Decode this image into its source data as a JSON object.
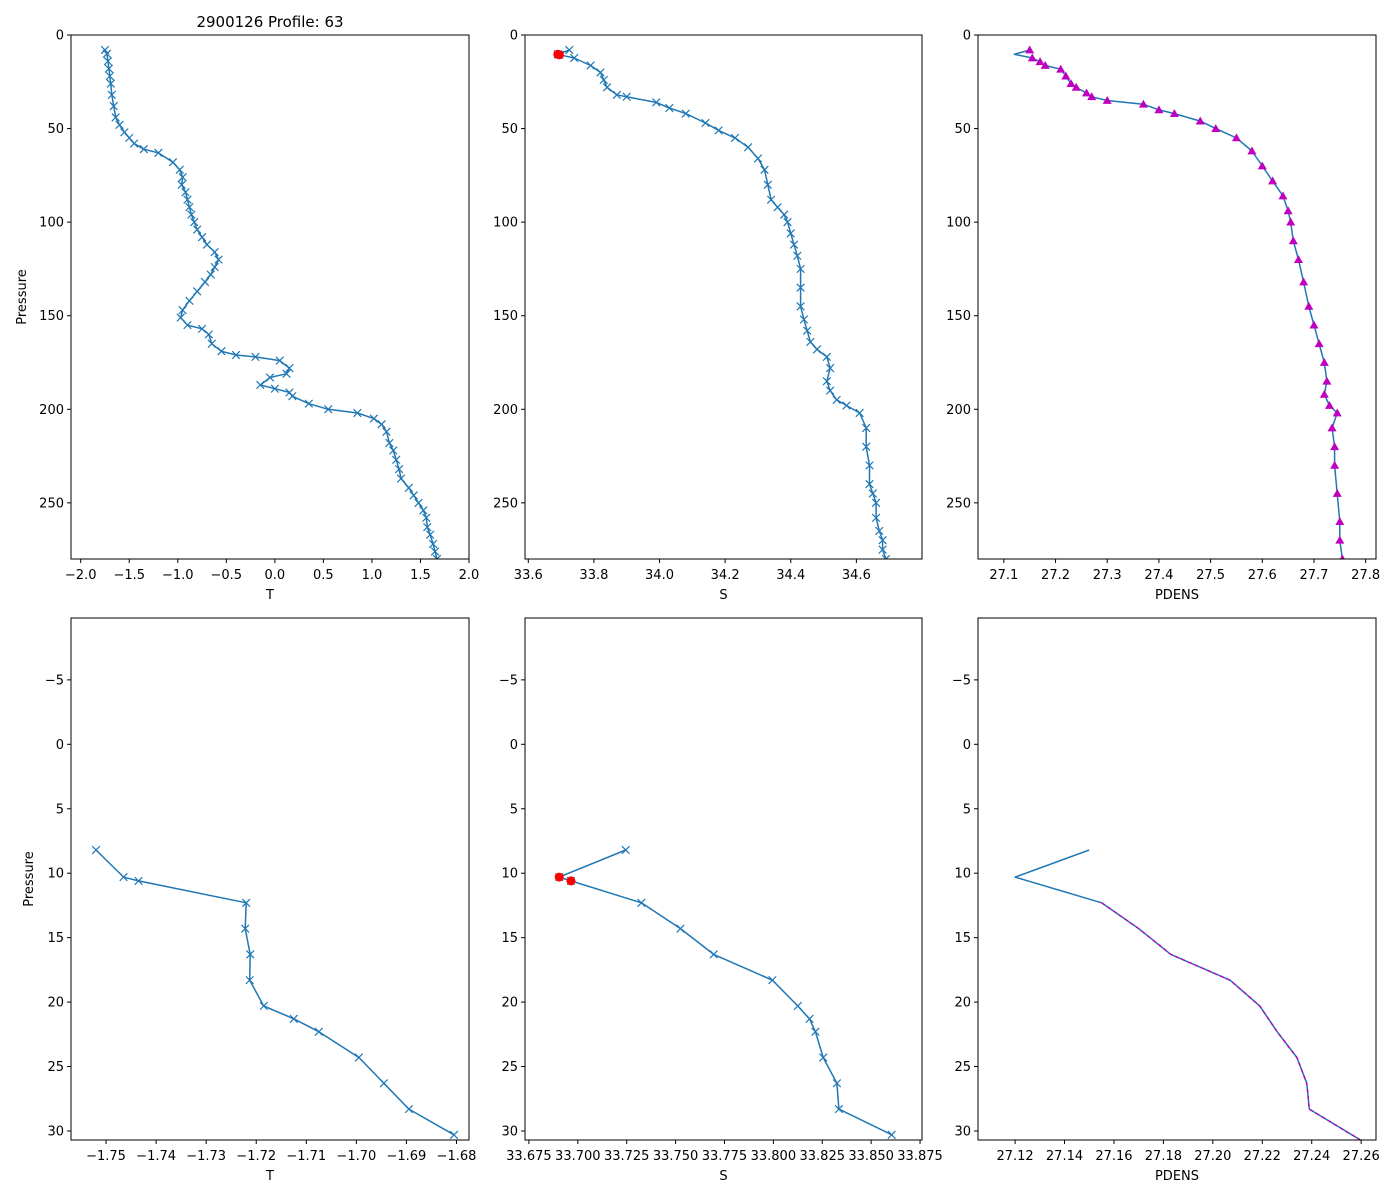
{
  "figure": {
    "title": "2900126 Profile: 63"
  },
  "colors": {
    "line": "#1f77b4",
    "pdens_marker": "#bf00bf",
    "flag": "#ff0000"
  },
  "chart_data": [
    {
      "type": "line",
      "panel": "top-T",
      "xlabel": "T",
      "ylabel": "Pressure",
      "xlim": [
        -2.1,
        2.0
      ],
      "ylim": [
        280,
        0
      ],
      "y_inverted": true,
      "xticks": [
        -2.0,
        -1.5,
        -1.0,
        -0.5,
        0.0,
        0.5,
        1.0,
        1.5,
        2.0
      ],
      "xticklabels": [
        "−2.0",
        "−1.5",
        "−1.0",
        "−0.5",
        "0.0",
        "0.5",
        "1.0",
        "1.5",
        "2.0"
      ],
      "yticks": [
        0,
        50,
        100,
        150,
        200,
        250
      ],
      "yticklabels": [
        "0",
        "50",
        "100",
        "150",
        "200",
        "250"
      ],
      "marker": "x",
      "x": [
        -1.75,
        -1.73,
        -1.72,
        -1.71,
        -1.7,
        -1.69,
        -1.68,
        -1.66,
        -1.64,
        -1.6,
        -1.55,
        -1.5,
        -1.45,
        -1.35,
        -1.2,
        -1.05,
        -0.98,
        -0.95,
        -0.96,
        -0.92,
        -0.9,
        -0.88,
        -0.86,
        -0.83,
        -0.8,
        -0.75,
        -0.7,
        -0.62,
        -0.58,
        -0.62,
        -0.66,
        -0.72,
        -0.8,
        -0.88,
        -0.95,
        -0.97,
        -0.9,
        -0.75,
        -0.68,
        -0.65,
        -0.55,
        -0.4,
        -0.2,
        0.05,
        0.15,
        0.12,
        -0.05,
        -0.15,
        0.0,
        0.15,
        0.18,
        0.35,
        0.55,
        0.85,
        1.02,
        1.1,
        1.15,
        1.18,
        1.22,
        1.25,
        1.28,
        1.3,
        1.38,
        1.43,
        1.48,
        1.53,
        1.56,
        1.57,
        1.6,
        1.63,
        1.65,
        1.67
      ],
      "y": [
        8,
        10,
        14,
        18,
        22,
        26,
        32,
        38,
        44,
        48,
        52,
        55,
        58,
        61,
        63,
        68,
        72,
        76,
        80,
        84,
        88,
        92,
        96,
        100,
        104,
        108,
        112,
        116,
        120,
        124,
        128,
        132,
        137,
        142,
        147,
        151,
        155,
        157,
        160,
        165,
        169,
        171,
        172,
        174,
        178,
        181,
        183,
        187,
        189,
        191,
        193,
        197,
        200,
        202,
        205,
        208,
        212,
        218,
        222,
        227,
        232,
        237,
        242,
        246,
        250,
        254,
        258,
        263,
        267,
        272,
        276,
        280
      ],
      "flagged": []
    },
    {
      "type": "line",
      "panel": "top-S",
      "xlabel": "S",
      "ylabel": "",
      "xlim": [
        33.59,
        34.8
      ],
      "ylim": [
        280,
        0
      ],
      "y_inverted": true,
      "xticks": [
        33.6,
        33.8,
        34.0,
        34.2,
        34.4,
        34.6
      ],
      "xticklabels": [
        "33.6",
        "33.8",
        "34.0",
        "34.2",
        "34.4",
        "34.6"
      ],
      "yticks": [
        0,
        50,
        100,
        150,
        200,
        250
      ],
      "yticklabels": [
        "0",
        "50",
        "100",
        "150",
        "200",
        "250"
      ],
      "marker": "x",
      "x": [
        33.725,
        33.69,
        33.695,
        33.74,
        33.79,
        33.82,
        33.83,
        33.84,
        33.87,
        33.9,
        33.99,
        34.03,
        34.08,
        34.14,
        34.18,
        34.23,
        34.27,
        34.3,
        34.32,
        34.33,
        34.34,
        34.36,
        34.38,
        34.39,
        34.4,
        34.41,
        34.42,
        34.43,
        34.43,
        34.43,
        34.44,
        34.45,
        34.46,
        34.48,
        34.51,
        34.52,
        34.51,
        34.52,
        34.54,
        34.57,
        34.61,
        34.63,
        34.63,
        34.64,
        34.64,
        34.65,
        34.66,
        34.66,
        34.67,
        34.68,
        34.68,
        34.69
      ],
      "y": [
        8,
        10.3,
        10.6,
        12.3,
        16.3,
        20,
        24,
        28,
        32,
        33,
        36,
        39,
        42,
        47,
        51,
        55,
        60,
        66,
        72,
        80,
        88,
        92,
        96,
        100,
        106,
        112,
        118,
        125,
        135,
        145,
        152,
        158,
        164,
        168,
        172,
        178,
        185,
        190,
        195,
        198,
        202,
        210,
        220,
        230,
        240,
        245,
        250,
        258,
        265,
        270,
        275,
        280
      ],
      "flagged": [
        1,
        2
      ]
    },
    {
      "type": "line",
      "panel": "top-PDENS",
      "xlabel": "PDENS",
      "ylabel": "",
      "xlim": [
        27.05,
        27.82
      ],
      "ylim": [
        280,
        0
      ],
      "y_inverted": true,
      "xticks": [
        27.1,
        27.2,
        27.3,
        27.4,
        27.5,
        27.6,
        27.7,
        27.8
      ],
      "xticklabels": [
        "27.1",
        "27.2",
        "27.3",
        "27.4",
        "27.5",
        "27.6",
        "27.7",
        "27.8"
      ],
      "yticks": [
        0,
        50,
        100,
        150,
        200,
        250
      ],
      "yticklabels": [
        "0",
        "50",
        "100",
        "150",
        "200",
        "250"
      ],
      "marker": "triangle",
      "x": [
        27.15,
        27.12,
        27.155,
        27.17,
        27.18,
        27.21,
        27.22,
        27.23,
        27.24,
        27.26,
        27.27,
        27.3,
        27.37,
        27.4,
        27.43,
        27.48,
        27.51,
        27.55,
        27.58,
        27.6,
        27.62,
        27.64,
        27.65,
        27.655,
        27.66,
        27.67,
        27.68,
        27.69,
        27.7,
        27.71,
        27.72,
        27.725,
        27.72,
        27.73,
        27.745,
        27.735,
        27.74,
        27.74,
        27.745,
        27.75,
        27.75,
        27.755
      ],
      "y": [
        8,
        10.3,
        12.3,
        14.3,
        16.3,
        18.3,
        22,
        26,
        28,
        31,
        33,
        35,
        37,
        40,
        42,
        46,
        50,
        55,
        62,
        70,
        78,
        86,
        94,
        100,
        110,
        120,
        132,
        145,
        155,
        165,
        175,
        185,
        192,
        198,
        202,
        210,
        220,
        230,
        245,
        260,
        270,
        280
      ],
      "flagged": []
    },
    {
      "type": "line",
      "panel": "bottom-T",
      "xlabel": "T",
      "ylabel": "Pressure",
      "xlim": [
        -1.757,
        -1.6775
      ],
      "ylim": [
        30.7,
        -9.8
      ],
      "y_inverted": true,
      "xticks": [
        -1.75,
        -1.74,
        -1.73,
        -1.72,
        -1.71,
        -1.7,
        -1.69,
        -1.68
      ],
      "xticklabels": [
        "−1.75",
        "−1.74",
        "−1.73",
        "−1.72",
        "−1.71",
        "−1.70",
        "−1.69",
        "−1.68"
      ],
      "yticks": [
        -5,
        0,
        5,
        10,
        15,
        20,
        25,
        30
      ],
      "yticklabels": [
        "−5",
        "0",
        "5",
        "10",
        "15",
        "20",
        "25",
        "30"
      ],
      "marker": "x",
      "x": [
        -1.752,
        -1.7465,
        -1.7435,
        -1.722,
        -1.7222,
        -1.7212,
        -1.7213,
        -1.7185,
        -1.7125,
        -1.7075,
        -1.6995,
        -1.6945,
        -1.6895,
        -1.6805
      ],
      "y": [
        8.2,
        10.3,
        10.6,
        12.3,
        14.3,
        16.3,
        18.3,
        20.3,
        21.3,
        22.3,
        24.3,
        26.3,
        28.3,
        30.3
      ],
      "flagged": []
    },
    {
      "type": "line",
      "panel": "bottom-S",
      "xlabel": "S",
      "ylabel": "",
      "xlim": [
        33.673,
        33.876
      ],
      "ylim": [
        30.7,
        -9.8
      ],
      "y_inverted": true,
      "xticks": [
        33.675,
        33.7,
        33.725,
        33.75,
        33.775,
        33.8,
        33.825,
        33.85,
        33.875
      ],
      "xticklabels": [
        "33.675",
        "33.700",
        "33.725",
        "33.750",
        "33.775",
        "33.800",
        "33.825",
        "33.850",
        "33.875"
      ],
      "yticks": [
        -5,
        0,
        5,
        10,
        15,
        20,
        25,
        30
      ],
      "yticklabels": [
        "−5",
        "0",
        "5",
        "10",
        "15",
        "20",
        "25",
        "30"
      ],
      "marker": "x",
      "x": [
        33.7245,
        33.6905,
        33.6965,
        33.7325,
        33.7525,
        33.7695,
        33.7995,
        33.8125,
        33.8185,
        33.8215,
        33.8255,
        33.8325,
        33.8335,
        33.8605
      ],
      "y": [
        8.2,
        10.3,
        10.6,
        12.3,
        14.3,
        16.3,
        18.3,
        20.3,
        21.3,
        22.3,
        24.3,
        26.3,
        28.3,
        30.3
      ],
      "flagged": [
        1,
        2
      ]
    },
    {
      "type": "line",
      "panel": "bottom-PDENS",
      "xlabel": "PDENS",
      "ylabel": "",
      "xlim": [
        27.105,
        27.266
      ],
      "ylim": [
        30.7,
        -9.8
      ],
      "y_inverted": true,
      "xticks": [
        27.12,
        27.14,
        27.16,
        27.18,
        27.2,
        27.22,
        27.24,
        27.26
      ],
      "xticklabels": [
        "27.12",
        "27.14",
        "27.16",
        "27.18",
        "27.20",
        "27.22",
        "27.24",
        "27.26"
      ],
      "yticks": [
        -5,
        0,
        5,
        10,
        15,
        20,
        25,
        30
      ],
      "yticklabels": [
        "−5",
        "0",
        "5",
        "10",
        "15",
        "20",
        "25",
        "30"
      ],
      "marker": "dashed-overlay",
      "x": [
        27.15,
        27.12,
        27.155,
        27.17,
        27.183,
        27.207,
        27.219,
        27.226,
        27.234,
        27.238,
        27.239,
        27.264
      ],
      "y": [
        8.2,
        10.3,
        12.3,
        14.3,
        16.3,
        18.3,
        20.3,
        22.3,
        24.3,
        26.3,
        28.3,
        31.2
      ],
      "flagged": []
    }
  ]
}
